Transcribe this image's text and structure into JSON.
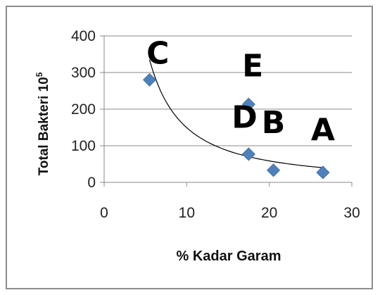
{
  "chart_data": {
    "type": "scatter",
    "xlabel": "% Kadar Garam",
    "ylabel": "Total Bakteri 10",
    "ylabel_superscript": "5",
    "xlim": [
      0,
      30
    ],
    "ylim": [
      0,
      400
    ],
    "x_ticks": [
      0,
      10,
      20,
      30
    ],
    "y_ticks": [
      0,
      100,
      200,
      300,
      400
    ],
    "grid": "horizontal",
    "marker": "diamond",
    "marker_color": "#4f81bd",
    "series": [
      {
        "points": [
          {
            "x": 5.5,
            "y": 280
          },
          {
            "x": 17.5,
            "y": 213
          },
          {
            "x": 17.5,
            "y": 77
          },
          {
            "x": 20.5,
            "y": 33
          },
          {
            "x": 26.5,
            "y": 27
          }
        ]
      }
    ],
    "trendline": {
      "type": "power",
      "color": "#000000",
      "x_range": [
        5.5,
        26.5
      ],
      "y_at_start": 335,
      "y_at_end": 40
    },
    "annotations": [
      {
        "text": "C",
        "x": 6.5,
        "y": 355
      },
      {
        "text": "E",
        "x": 18.0,
        "y": 320
      },
      {
        "text": "D",
        "x": 17.0,
        "y": 180
      },
      {
        "text": "B",
        "x": 20.5,
        "y": 165
      },
      {
        "text": "A",
        "x": 26.5,
        "y": 145
      }
    ]
  }
}
